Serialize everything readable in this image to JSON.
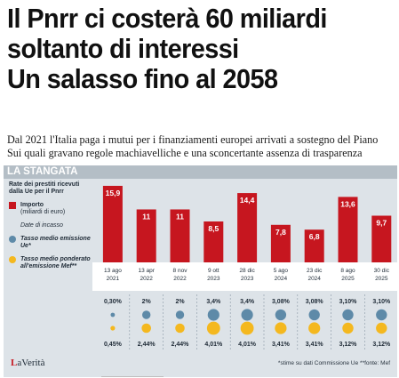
{
  "headline": {
    "line1": "Il Pnrr ci costerà 60 miliardi",
    "line2": "soltanto di interessi",
    "line3": "Un salasso fino al 2058"
  },
  "deck": {
    "line1": "Dal 2021 l'Italia paga i mutui per i finanziamenti europei arrivati a sostegno del Piano",
    "line2": "Sui quali gravano regole machiavelliche e una sconcertante assenza di trasparenza"
  },
  "infographic": {
    "banner": "LA STANGATA",
    "legend": {
      "title": "Rate dei prestiti ricevuti dalla Ue per il Pnrr",
      "importo": "Importo",
      "importo_unit": "(miliardi di euro)",
      "date": "Date di incasso",
      "tasso_ue": "Tasso medio emissione Ue*",
      "tasso_mef": "Tasso medio ponderato all'emissione Mef**"
    },
    "footnote": "*stime su dati Commissione Ue  **fonte: Mef",
    "logo": "LaVerità"
  },
  "colors": {
    "bar": "#c6161f",
    "blue_dot": "#5e8aa8",
    "yellow_dot": "#f4b81f",
    "panel": "#dde3e8",
    "banner": "#b4bec6"
  },
  "chart_data": {
    "type": "bar",
    "categories": [
      "13 ago 2021",
      "13 apr 2022",
      "8 nov 2022",
      "9 ott 2023",
      "28 dic 2023",
      "5 ago 2024",
      "23 dic 2024",
      "8 ago 2025",
      "30 dic 2025"
    ],
    "date_lines": [
      [
        "13 ago",
        "2021"
      ],
      [
        "13 apr",
        "2022"
      ],
      [
        "8 nov",
        "2022"
      ],
      [
        "9 ott",
        "2023"
      ],
      [
        "28 dic",
        "2023"
      ],
      [
        "5 ago",
        "2024"
      ],
      [
        "23 dic",
        "2024"
      ],
      [
        "8 ago",
        "2025"
      ],
      [
        "30 dic",
        "2025"
      ]
    ],
    "values": [
      15.9,
      11,
      11,
      8.5,
      14.4,
      7.8,
      6.8,
      13.6,
      9.7
    ],
    "value_labels": [
      "15,9",
      "11",
      "11",
      "8,5",
      "14,4",
      "7,8",
      "6,8",
      "13,6",
      "9,7"
    ],
    "ue_rate": [
      0.3,
      2,
      2,
      3.4,
      3.4,
      3.08,
      3.08,
      3.1,
      3.1
    ],
    "ue_rate_labels": [
      "0,30%",
      "2%",
      "2%",
      "3,4%",
      "3,4%",
      "3,08%",
      "3,08%",
      "3,10%",
      "3,10%"
    ],
    "mef_rate": [
      0.45,
      2.44,
      2.44,
      4.01,
      4.01,
      3.41,
      3.41,
      3.12,
      3.12
    ],
    "mef_rate_labels": [
      "0,45%",
      "2,44%",
      "2,44%",
      "4,01%",
      "4,01%",
      "3,41%",
      "3,41%",
      "3,12%",
      "3,12%"
    ],
    "ylim": [
      0,
      17
    ]
  }
}
